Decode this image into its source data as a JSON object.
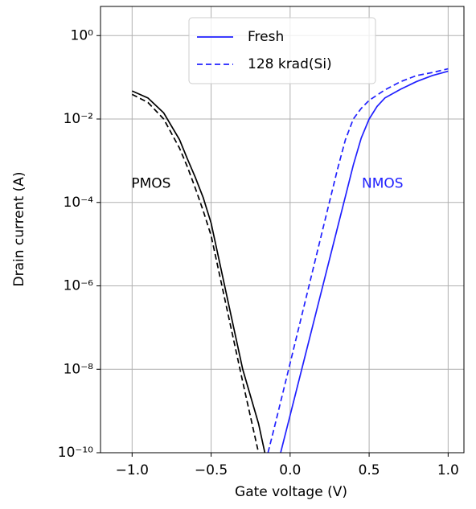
{
  "chart_data": {
    "type": "line",
    "xlabel": "Gate voltage (V)",
    "ylabel": "Drain current (A)",
    "xlim": [
      -1.2,
      1.1
    ],
    "ylim": [
      1e-10,
      5
    ],
    "yscale": "log",
    "grid": true,
    "xticks": [
      {
        "value": -1.0,
        "label": "−1.0"
      },
      {
        "value": -0.5,
        "label": "−0.5"
      },
      {
        "value": 0.0,
        "label": "0.0"
      },
      0.5,
      {
        "value": 1.0,
        "label": "1.0"
      }
    ],
    "yticks": [
      {
        "value": 1e-10,
        "label": "10⁻¹⁰"
      },
      {
        "value": 1e-08,
        "label": "10⁻⁸"
      },
      {
        "value": 1e-06,
        "label": "10⁻⁶"
      },
      {
        "value": 0.0001,
        "label": "10⁻⁴"
      },
      {
        "value": 0.01,
        "label": "10⁻²"
      },
      {
        "value": 1,
        "label": "10⁰"
      }
    ],
    "series": [
      {
        "name": "Fresh",
        "color": "#2020ff",
        "linestyle": "solid",
        "x": [
          -0.06,
          0,
          0.1,
          0.2,
          0.3,
          0.35,
          0.4,
          0.45,
          0.5,
          0.55,
          0.6,
          0.7,
          0.8,
          0.9,
          1.0
        ],
        "values": [
          1e-10,
          7.9e-10,
          2.5e-08,
          7.9e-07,
          2.5e-05,
          0.00014,
          0.00079,
          0.0035,
          0.01,
          0.02,
          0.032,
          0.052,
          0.079,
          0.11,
          0.14
        ]
      },
      {
        "name": "128 krad(Si)",
        "color": "#2020ff",
        "linestyle": "dashed",
        "x": [
          -0.14,
          -0.1,
          0,
          0.1,
          0.2,
          0.3,
          0.35,
          0.4,
          0.45,
          0.5,
          0.6,
          0.7,
          0.8,
          0.9,
          1.0
        ],
        "values": [
          1e-10,
          4e-10,
          1.4e-08,
          5e-07,
          1.8e-05,
          0.00063,
          0.0032,
          0.01,
          0.018,
          0.028,
          0.05,
          0.079,
          0.11,
          0.13,
          0.16
        ]
      },
      {
        "color": "#000000",
        "linestyle": "solid",
        "x": [
          -1.0,
          -0.9,
          -0.8,
          -0.7,
          -0.65,
          -0.6,
          -0.55,
          -0.5,
          -0.4,
          -0.3,
          -0.2,
          -0.16
        ],
        "values": [
          0.047,
          0.032,
          0.014,
          0.0032,
          0.0011,
          0.0004,
          0.00013,
          3.2e-05,
          5.6e-07,
          1e-08,
          5e-10,
          1e-10
        ]
      },
      {
        "color": "#000000",
        "linestyle": "dashed",
        "x": [
          -1.0,
          -0.9,
          -0.8,
          -0.7,
          -0.65,
          -0.6,
          -0.55,
          -0.5,
          -0.4,
          -0.3,
          -0.2
        ],
        "values": [
          0.039,
          0.025,
          0.01,
          0.002,
          0.00071,
          0.00022,
          6.3e-05,
          1.6e-05,
          2.8e-07,
          5e-09,
          1e-10
        ]
      }
    ],
    "annotations": [
      {
        "text": "PMOS",
        "x": -0.88,
        "y": 0.00028,
        "color": "#000000"
      },
      {
        "text": "NMOS",
        "x": 0.585,
        "y": 0.00028,
        "color": "#2020ff"
      }
    ],
    "legend_position": "upper center"
  }
}
